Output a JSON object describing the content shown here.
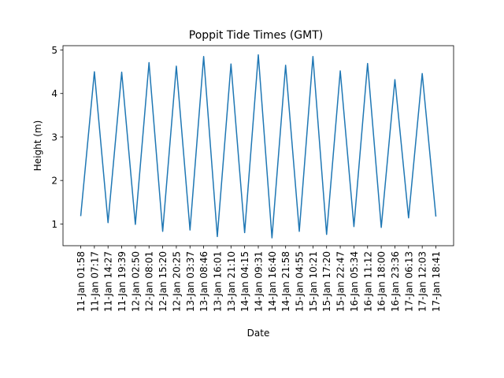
{
  "chart_data": {
    "type": "line",
    "title": "Poppit Tide Times (GMT)",
    "xlabel": "Date",
    "ylabel": "Height (m)",
    "ylim": [
      0.5,
      5.1
    ],
    "yticks": [
      1,
      2,
      3,
      4,
      5
    ],
    "grid": false,
    "x": [
      "11-Jan 01:58",
      "11-Jan 07:17",
      "11-Jan 14:27",
      "11-Jan 19:39",
      "12-Jan 02:50",
      "12-Jan 08:01",
      "12-Jan 15:20",
      "12-Jan 20:25",
      "13-Jan 03:37",
      "13-Jan 08:46",
      "13-Jan 16:01",
      "13-Jan 21:10",
      "14-Jan 04:15",
      "14-Jan 09:31",
      "14-Jan 16:40",
      "14-Jan 21:58",
      "15-Jan 04:55",
      "15-Jan 10:21",
      "15-Jan 17:20",
      "15-Jan 22:47",
      "16-Jan 05:34",
      "16-Jan 11:12",
      "16-Jan 18:00",
      "16-Jan 23:36",
      "17-Jan 06:13",
      "17-Jan 12:03",
      "17-Jan 18:41"
    ],
    "series": [
      {
        "values": [
          1.18,
          4.5,
          1.03,
          4.49,
          0.99,
          4.71,
          0.83,
          4.63,
          0.86,
          4.85,
          0.71,
          4.68,
          0.8,
          4.89,
          0.68,
          4.65,
          0.83,
          4.85,
          0.76,
          4.52,
          0.94,
          4.69,
          0.92,
          4.32,
          1.14,
          4.46,
          1.17
        ],
        "color": "#1f77b4"
      }
    ]
  }
}
